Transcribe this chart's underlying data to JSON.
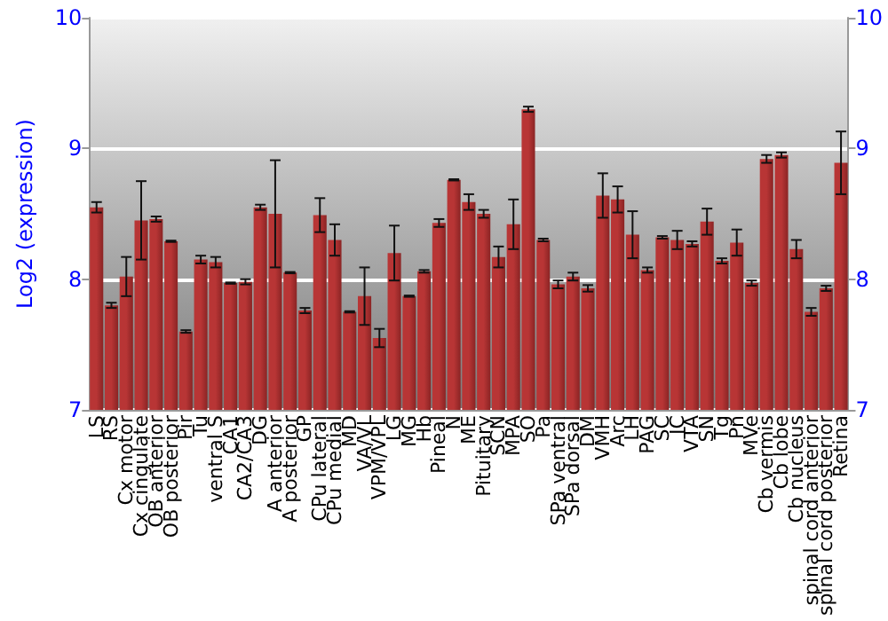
{
  "chart_data": {
    "type": "bar",
    "ylabel": "Log2 (expression)",
    "categories": [
      "LS",
      "RS",
      "Cx motor",
      "Cx cingulate",
      "OB anterior",
      "OB posterior",
      "Pir",
      "Tu",
      "ventral S",
      "CA1",
      "CA2/CA3",
      "DG",
      "A anterior",
      "A posterior",
      "GP",
      "CPu lateral",
      "CPu medial",
      "MD",
      "VA/VL",
      "VPM/VPL",
      "LG",
      "MG",
      "Hb",
      "Pineal",
      "N",
      "ME",
      "Pituitary",
      "SCN",
      "MPA",
      "SO",
      "Pa",
      "SPa ventral",
      "SPa dorsal",
      "DM",
      "VMH",
      "Arc",
      "LH",
      "PAG",
      "SC",
      "IC",
      "VTA",
      "SN",
      "Tg",
      "Pn",
      "MVe",
      "Cb vermis",
      "Cb lobe",
      "Cb nucleus",
      "spinal cord anterior",
      "spinal cord posterior",
      "Retina"
    ],
    "series": [
      {
        "color": "#b83535",
        "values": [
          8.55,
          7.8,
          8.02,
          8.45,
          8.46,
          8.29,
          7.6,
          8.15,
          8.13,
          7.97,
          7.98,
          8.55,
          8.5,
          8.05,
          7.76,
          8.49,
          8.3,
          7.75,
          7.87,
          7.55,
          8.2,
          7.87,
          8.06,
          8.43,
          8.76,
          8.59,
          8.5,
          8.17,
          8.42,
          9.3,
          8.3,
          7.96,
          8.02,
          7.93,
          8.64,
          8.61,
          8.34,
          8.07,
          8.32,
          8.3,
          8.27,
          8.44,
          8.14,
          8.28,
          7.97,
          8.92,
          8.95,
          8.23,
          7.75,
          7.93,
          8.89
        ],
        "errors": [
          0.04,
          0.02,
          0.15,
          0.3,
          0.02,
          0.005,
          0.01,
          0.03,
          0.04,
          0.005,
          0.02,
          0.02,
          0.41,
          0.005,
          0.02,
          0.13,
          0.12,
          0.005,
          0.22,
          0.07,
          0.21,
          0.005,
          0.01,
          0.03,
          0.005,
          0.06,
          0.03,
          0.08,
          0.19,
          0.02,
          0.01,
          0.03,
          0.03,
          0.025,
          0.17,
          0.1,
          0.18,
          0.02,
          0.01,
          0.07,
          0.02,
          0.1,
          0.02,
          0.1,
          0.02,
          0.03,
          0.02,
          0.07,
          0.03,
          0.02,
          0.24
        ]
      }
    ],
    "ylim": [
      7,
      10
    ],
    "yticks": [
      7,
      8,
      9,
      10
    ],
    "y2lim": [
      7,
      10
    ],
    "y2ticks": [
      7,
      8,
      9,
      10
    ],
    "grid": "y"
  }
}
